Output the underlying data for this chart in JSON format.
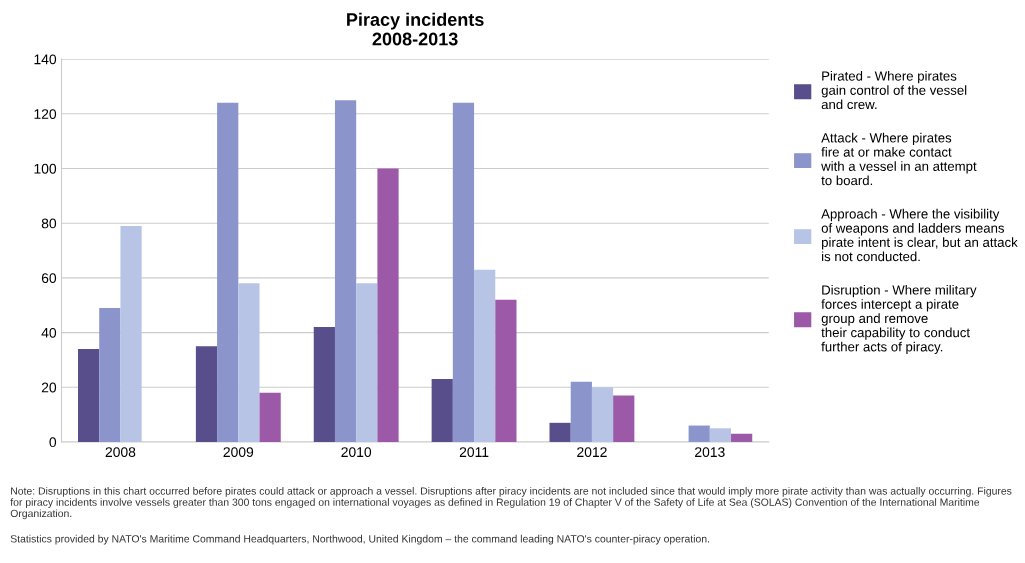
{
  "chart_data": {
    "type": "bar",
    "title": "Piracy incidents\n2008-2013",
    "categories": [
      "2008",
      "2009",
      "2010",
      "2011",
      "2012",
      "2013"
    ],
    "series": [
      {
        "name": "Pirated - Where pirates\ngain control of the vessel\nand crew.",
        "color": "#584e8c",
        "values": [
          34,
          35,
          42,
          23,
          7,
          0
        ]
      },
      {
        "name": "Attack - Where pirates\nfire at or make contact\nwith a vessel in an attempt\nto board.",
        "color": "#8b95cb",
        "values": [
          49,
          124,
          125,
          124,
          22,
          6
        ]
      },
      {
        "name": "Approach - Where the visibility\nof weapons and ladders means\npirate intent is clear, but an attack\nis not conducted.",
        "color": "#b8c4e6",
        "values": [
          79,
          58,
          58,
          63,
          20,
          5
        ]
      },
      {
        "name": "Disruption - Where military\nforces intercept a pirate\ngroup and remove\ntheir capability to conduct\nfurther acts of piracy.",
        "color": "#9b59a8",
        "values": [
          0,
          18,
          100,
          52,
          17,
          3
        ]
      }
    ],
    "ylim": [
      0,
      140
    ],
    "yticks": [
      0,
      20,
      40,
      60,
      80,
      100,
      120,
      140
    ],
    "grid": "y",
    "legend": "right",
    "annotations": [
      "Note: Disruptions in this chart occurred before pirates could attack or approach a vessel. Disruptions after piracy incidents are not included since that would imply more pirate activity than was actually occurring. Figures for piracy incidents involve vessels greater than 300 tons engaged on international voyages as defined in Regulation 19 of Chapter V of the Safety of Life at Sea (SOLAS) Convention of the International Maritime Organization.",
      "Statistics provided by NATO's Maritime Command Headquarters, Northwood, United Kingdom – the command leading NATO's counter-piracy operation."
    ]
  }
}
